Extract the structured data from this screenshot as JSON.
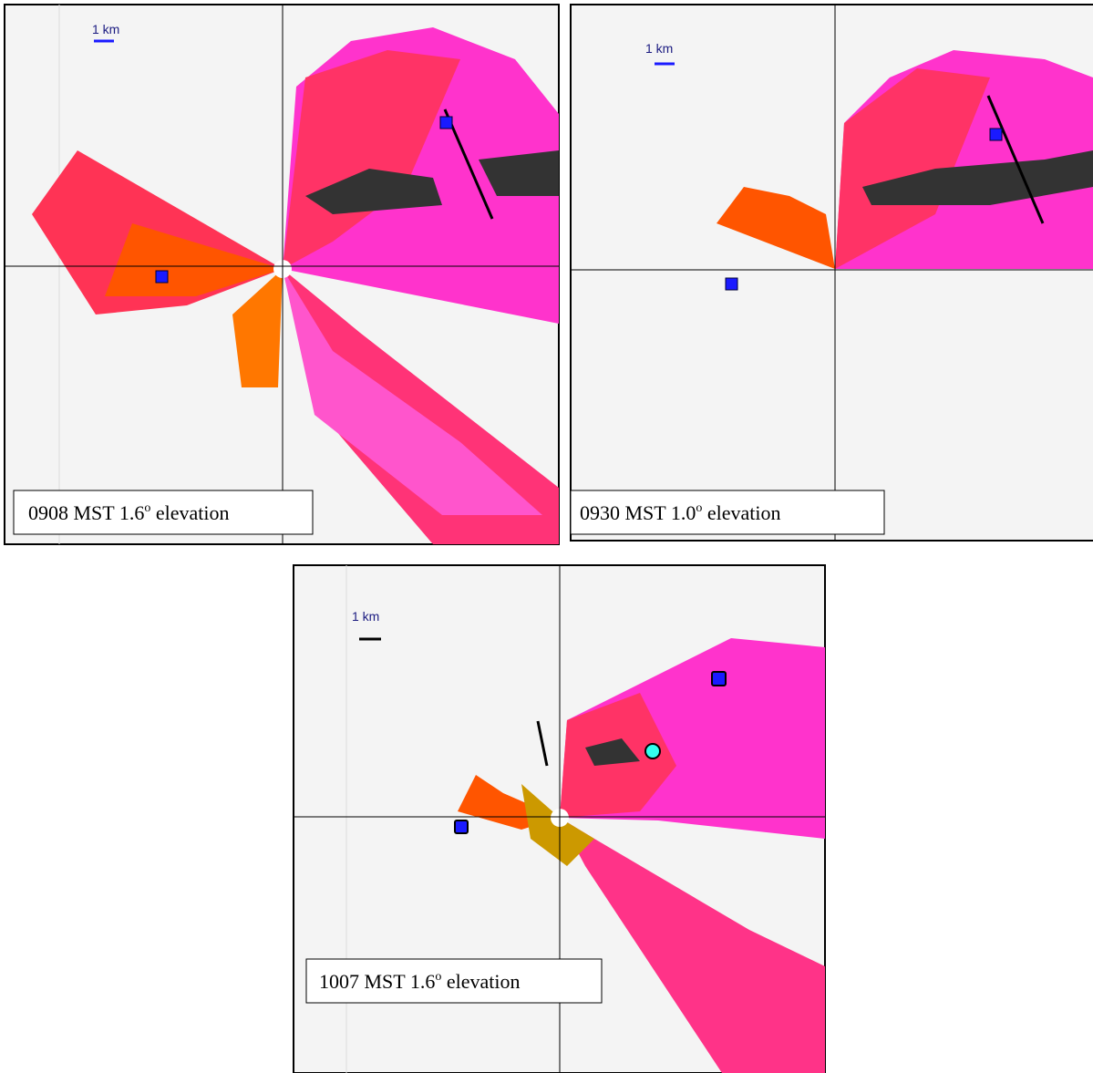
{
  "panels": [
    {
      "scale": "1 km",
      "caption": {
        "main": "0908 MST  1.6",
        "sup": "o",
        "rest": " elevation"
      }
    },
    {
      "scale": "1 km",
      "caption": {
        "main": "0930 MST 1.0",
        "sup": "o",
        "rest": " elevation"
      }
    },
    {
      "scale": "1 km",
      "caption": {
        "main": "1007 MST  1.6",
        "sup": "o",
        "rest": " elevation"
      }
    }
  ]
}
